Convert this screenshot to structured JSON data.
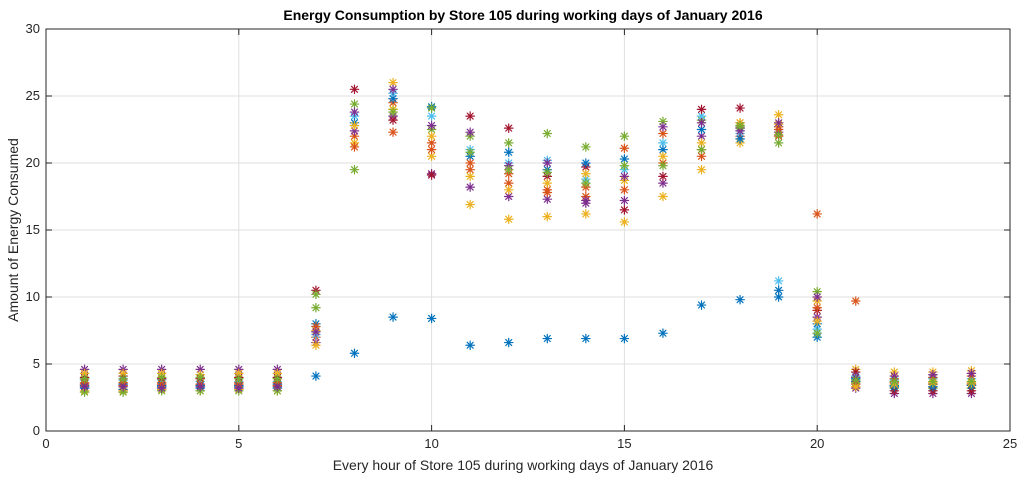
{
  "chart_data": {
    "type": "scatter",
    "title": "Energy Consumption by Store 105 during working days of January 2016",
    "xlabel": "Every hour of Store 105 during working days of January 2016",
    "ylabel": "Amount of Energy Consumed",
    "xlim": [
      0,
      25
    ],
    "ylim": [
      0,
      30
    ],
    "xticks": [
      0,
      5,
      10,
      15,
      20,
      25
    ],
    "yticks": [
      0,
      5,
      10,
      15,
      20,
      25,
      30
    ],
    "grid": true,
    "marker": "asterisk",
    "colors": [
      "#0072BD",
      "#D95319",
      "#EDB120",
      "#7E2F8E",
      "#77AC30",
      "#4DBEEE",
      "#A2142F"
    ],
    "series": [
      {
        "values": [
          [
            1,
            3.2
          ],
          [
            2,
            3.1
          ],
          [
            3,
            3.3
          ],
          [
            4,
            3.2
          ],
          [
            5,
            3.3
          ],
          [
            6,
            3.2
          ],
          [
            7,
            4.1
          ],
          [
            8,
            5.8
          ],
          [
            9,
            8.5
          ],
          [
            10,
            8.4
          ],
          [
            11,
            6.4
          ],
          [
            12,
            6.6
          ],
          [
            13,
            6.9
          ],
          [
            14,
            6.9
          ],
          [
            15,
            6.9
          ],
          [
            16,
            7.3
          ],
          [
            17,
            9.4
          ],
          [
            18,
            9.8
          ],
          [
            19,
            10.0
          ],
          [
            20,
            7.0
          ],
          [
            21,
            3.9
          ],
          [
            22,
            3.4
          ],
          [
            23,
            3.5
          ],
          [
            24,
            3.4
          ]
        ]
      },
      {
        "values": [
          [
            1,
            3.5
          ],
          [
            2,
            3.4
          ],
          [
            3,
            3.6
          ],
          [
            4,
            3.5
          ],
          [
            5,
            3.6
          ],
          [
            6,
            3.4
          ],
          [
            7,
            7.0
          ],
          [
            8,
            22.0
          ],
          [
            9,
            24.5
          ],
          [
            10,
            21.5
          ],
          [
            11,
            19.5
          ],
          [
            12,
            18.5
          ],
          [
            13,
            18.0
          ],
          [
            14,
            17.5
          ],
          [
            15,
            18.0
          ],
          [
            16,
            20.0
          ],
          [
            17,
            21.0
          ],
          [
            18,
            22.0
          ],
          [
            19,
            22.0
          ],
          [
            20,
            16.2
          ],
          [
            21,
            9.7
          ],
          [
            22,
            3.6
          ],
          [
            23,
            3.5
          ],
          [
            24,
            3.5
          ]
        ]
      },
      {
        "values": [
          [
            1,
            3.0
          ],
          [
            2,
            3.0
          ],
          [
            3,
            3.1
          ],
          [
            4,
            3.0
          ],
          [
            5,
            3.1
          ],
          [
            6,
            3.0
          ],
          [
            7,
            7.5
          ],
          [
            8,
            21.5
          ],
          [
            9,
            26.0
          ],
          [
            10,
            20.5
          ],
          [
            11,
            16.9
          ],
          [
            12,
            15.8
          ],
          [
            13,
            16.0
          ],
          [
            14,
            16.2
          ],
          [
            15,
            15.6
          ],
          [
            16,
            17.5
          ],
          [
            17,
            19.5
          ],
          [
            18,
            21.5
          ],
          [
            19,
            23.6
          ],
          [
            20,
            9.7
          ],
          [
            21,
            4.6
          ],
          [
            22,
            4.4
          ],
          [
            23,
            4.4
          ],
          [
            24,
            4.5
          ]
        ]
      },
      {
        "values": [
          [
            1,
            4.6
          ],
          [
            2,
            4.6
          ],
          [
            3,
            4.6
          ],
          [
            4,
            4.6
          ],
          [
            5,
            4.6
          ],
          [
            6,
            4.6
          ],
          [
            7,
            6.6
          ],
          [
            8,
            22.4
          ],
          [
            9,
            23.5
          ],
          [
            10,
            19.2
          ],
          [
            11,
            18.2
          ],
          [
            12,
            17.5
          ],
          [
            13,
            17.3
          ],
          [
            14,
            17.2
          ],
          [
            15,
            17.2
          ],
          [
            16,
            18.5
          ],
          [
            17,
            22.0
          ],
          [
            18,
            22.6
          ],
          [
            19,
            22.3
          ],
          [
            20,
            8.5
          ],
          [
            21,
            3.2
          ],
          [
            22,
            2.8
          ],
          [
            23,
            2.8
          ],
          [
            24,
            2.8
          ]
        ]
      },
      {
        "values": [
          [
            1,
            2.9
          ],
          [
            2,
            2.9
          ],
          [
            3,
            3.0
          ],
          [
            4,
            3.0
          ],
          [
            5,
            3.0
          ],
          [
            6,
            3.0
          ],
          [
            7,
            9.2
          ],
          [
            8,
            24.4
          ],
          [
            9,
            24.0
          ],
          [
            10,
            22.5
          ],
          [
            11,
            22.0
          ],
          [
            12,
            21.5
          ],
          [
            13,
            22.2
          ],
          [
            14,
            21.2
          ],
          [
            15,
            22.0
          ],
          [
            16,
            23.1
          ],
          [
            17,
            23.2
          ],
          [
            18,
            22.7
          ],
          [
            19,
            21.5
          ],
          [
            20,
            10.4
          ],
          [
            21,
            3.6
          ],
          [
            22,
            3.2
          ],
          [
            23,
            3.2
          ],
          [
            24,
            3.2
          ]
        ]
      },
      {
        "values": [
          [
            1,
            3.8
          ],
          [
            2,
            3.8
          ],
          [
            3,
            3.8
          ],
          [
            4,
            3.7
          ],
          [
            5,
            3.7
          ],
          [
            6,
            3.7
          ],
          [
            7,
            7.2
          ],
          [
            8,
            23.5
          ],
          [
            9,
            25.2
          ],
          [
            10,
            23.5
          ],
          [
            11,
            21.0
          ],
          [
            12,
            20.0
          ],
          [
            13,
            20.2
          ],
          [
            14,
            18.8
          ],
          [
            15,
            19.5
          ],
          [
            16,
            21.5
          ],
          [
            17,
            23.5
          ],
          [
            18,
            22.2
          ],
          [
            19,
            11.2
          ],
          [
            20,
            7.6
          ],
          [
            21,
            4.1
          ],
          [
            22,
            3.8
          ],
          [
            23,
            3.9
          ],
          [
            24,
            3.9
          ]
        ]
      },
      {
        "values": [
          [
            1,
            4.0
          ],
          [
            2,
            4.1
          ],
          [
            3,
            3.9
          ],
          [
            4,
            3.9
          ],
          [
            5,
            4.0
          ],
          [
            6,
            4.0
          ],
          [
            7,
            10.5
          ],
          [
            8,
            25.5
          ],
          [
            9,
            23.2
          ],
          [
            10,
            19.1
          ],
          [
            11,
            23.5
          ],
          [
            12,
            22.6
          ],
          [
            13,
            19.0
          ],
          [
            14,
            19.7
          ],
          [
            15,
            16.5
          ],
          [
            16,
            19.0
          ],
          [
            17,
            24.0
          ],
          [
            18,
            24.1
          ],
          [
            19,
            22.7
          ],
          [
            20,
            9.0
          ],
          [
            21,
            4.4
          ],
          [
            22,
            3.0
          ],
          [
            23,
            3.0
          ],
          [
            24,
            3.0
          ]
        ]
      },
      {
        "values": [
          [
            1,
            3.4
          ],
          [
            2,
            3.5
          ],
          [
            3,
            3.4
          ],
          [
            4,
            3.4
          ],
          [
            5,
            3.4
          ],
          [
            6,
            3.5
          ],
          [
            7,
            8.0
          ],
          [
            8,
            23.0
          ],
          [
            9,
            24.8
          ],
          [
            10,
            24.2
          ],
          [
            11,
            20.5
          ],
          [
            12,
            20.8
          ],
          [
            13,
            19.5
          ],
          [
            14,
            20.0
          ],
          [
            15,
            20.3
          ],
          [
            16,
            21.0
          ],
          [
            17,
            22.5
          ],
          [
            18,
            21.8
          ],
          [
            19,
            10.5
          ],
          [
            20,
            8.0
          ],
          [
            21,
            3.7
          ],
          [
            22,
            3.3
          ],
          [
            23,
            3.3
          ],
          [
            24,
            3.4
          ]
        ]
      },
      {
        "values": [
          [
            1,
            3.6
          ],
          [
            2,
            3.6
          ],
          [
            3,
            3.5
          ],
          [
            4,
            3.5
          ],
          [
            5,
            3.5
          ],
          [
            6,
            3.6
          ],
          [
            7,
            7.8
          ],
          [
            8,
            21.2
          ],
          [
            9,
            22.3
          ],
          [
            10,
            21.0
          ],
          [
            11,
            20.0
          ],
          [
            12,
            19.2
          ],
          [
            13,
            17.8
          ],
          [
            14,
            18.2
          ],
          [
            15,
            21.1
          ],
          [
            16,
            22.2
          ],
          [
            17,
            20.5
          ],
          [
            18,
            23.0
          ],
          [
            19,
            22.5
          ],
          [
            20,
            9.2
          ],
          [
            21,
            3.5
          ],
          [
            22,
            3.9
          ],
          [
            23,
            4.0
          ],
          [
            24,
            4.1
          ]
        ]
      },
      {
        "values": [
          [
            1,
            4.3
          ],
          [
            2,
            4.3
          ],
          [
            3,
            4.3
          ],
          [
            4,
            4.2
          ],
          [
            5,
            4.3
          ],
          [
            6,
            4.3
          ],
          [
            7,
            6.4
          ],
          [
            8,
            22.8
          ],
          [
            9,
            24.0
          ],
          [
            10,
            22.0
          ],
          [
            11,
            19.0
          ],
          [
            12,
            18.0
          ],
          [
            13,
            18.5
          ],
          [
            14,
            19.2
          ],
          [
            15,
            18.7
          ],
          [
            16,
            20.5
          ],
          [
            17,
            21.5
          ],
          [
            18,
            23.0
          ],
          [
            19,
            22.9
          ],
          [
            20,
            8.2
          ],
          [
            21,
            3.3
          ],
          [
            22,
            3.5
          ],
          [
            23,
            3.6
          ],
          [
            24,
            3.6
          ]
        ]
      },
      {
        "values": [
          [
            1,
            3.3
          ],
          [
            2,
            3.3
          ],
          [
            3,
            3.2
          ],
          [
            4,
            3.3
          ],
          [
            5,
            3.2
          ],
          [
            6,
            3.3
          ],
          [
            7,
            7.4
          ],
          [
            8,
            23.8
          ],
          [
            9,
            25.5
          ],
          [
            10,
            22.8
          ],
          [
            11,
            22.3
          ],
          [
            12,
            19.8
          ],
          [
            13,
            20.0
          ],
          [
            14,
            17.0
          ],
          [
            15,
            19.0
          ],
          [
            16,
            22.7
          ],
          [
            17,
            23.0
          ],
          [
            18,
            22.4
          ],
          [
            19,
            23.0
          ],
          [
            20,
            10.0
          ],
          [
            21,
            4.0
          ],
          [
            22,
            4.1
          ],
          [
            23,
            4.2
          ],
          [
            24,
            4.3
          ]
        ]
      },
      {
        "values": [
          [
            1,
            3.9
          ],
          [
            2,
            3.9
          ],
          [
            3,
            4.0
          ],
          [
            4,
            4.0
          ],
          [
            5,
            3.9
          ],
          [
            6,
            3.9
          ],
          [
            7,
            10.2
          ],
          [
            8,
            19.5
          ],
          [
            9,
            23.8
          ],
          [
            10,
            24.1
          ],
          [
            11,
            20.8
          ],
          [
            12,
            19.5
          ],
          [
            13,
            19.3
          ],
          [
            14,
            18.5
          ],
          [
            15,
            19.8
          ],
          [
            16,
            19.8
          ],
          [
            17,
            21.0
          ],
          [
            18,
            22.8
          ],
          [
            19,
            22.1
          ],
          [
            20,
            7.3
          ],
          [
            21,
            3.8
          ],
          [
            22,
            3.7
          ],
          [
            23,
            3.7
          ],
          [
            24,
            3.7
          ]
        ]
      }
    ]
  }
}
